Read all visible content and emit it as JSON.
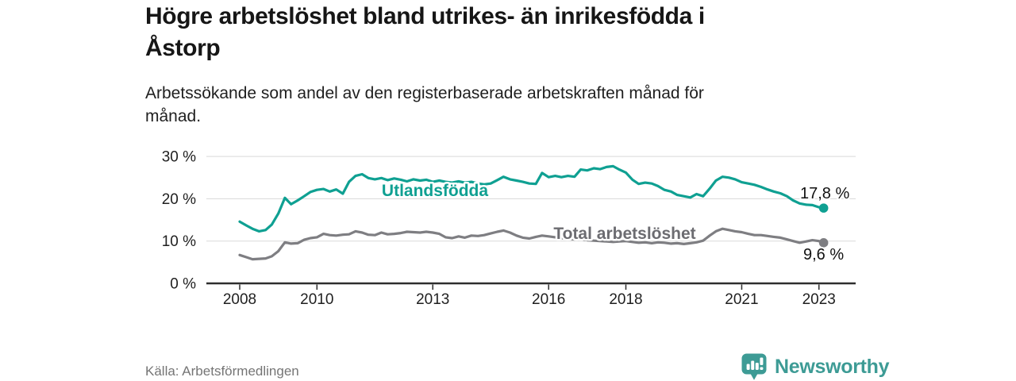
{
  "header": {
    "title_line1": "Högre arbetslöshet bland utrikes- än inrikesfödda i",
    "title_line2": "Åstorp",
    "subtitle_line1": "Arbetssökande som andel av den registerbaserade arbetskraften månad för",
    "subtitle_line2": "månad."
  },
  "footer": {
    "source": "Källa: Arbetsförmedlingen",
    "brand": "Newsworthy"
  },
  "colors": {
    "accent_teal": "#0fa092",
    "logo_teal": "#3d9b95",
    "gray_line": "#7e7e82",
    "gray_label": "#6c6c71",
    "axis": "#2e2e2e",
    "gridline": "#d9d9d9",
    "tick_text": "#1f1f1f",
    "value_text": "#111111"
  },
  "chart_data": {
    "type": "line",
    "title": "Högre arbetslöshet bland utrikes- än inrikesfödda i Åstorp",
    "subtitle": "Arbetssökande som andel av den registerbaserade arbetskraften månad för månad.",
    "unit": "%",
    "grid": true,
    "legend_position": "inline-labels",
    "xlim": [
      2007.85,
      2023.95
    ],
    "ylim": [
      0,
      31
    ],
    "x_ticks": [
      2008,
      2010,
      2013,
      2016,
      2018,
      2021,
      2023
    ],
    "y_ticks": [
      {
        "value": 0,
        "label": "0 %"
      },
      {
        "value": 10,
        "label": "10 %"
      },
      {
        "value": 20,
        "label": "20 %"
      },
      {
        "value": 30,
        "label": "30 %"
      }
    ],
    "x": [
      2008,
      2008.17,
      2008.33,
      2008.5,
      2008.67,
      2008.83,
      2009,
      2009.17,
      2009.33,
      2009.5,
      2009.67,
      2009.83,
      2010,
      2010.17,
      2010.33,
      2010.5,
      2010.67,
      2010.83,
      2011,
      2011.17,
      2011.33,
      2011.5,
      2011.67,
      2011.83,
      2012,
      2012.17,
      2012.33,
      2012.5,
      2012.67,
      2012.83,
      2013,
      2013.17,
      2013.33,
      2013.5,
      2013.67,
      2013.83,
      2014,
      2014.17,
      2014.33,
      2014.5,
      2014.67,
      2014.83,
      2015,
      2015.17,
      2015.33,
      2015.5,
      2015.67,
      2015.83,
      2016,
      2016.17,
      2016.33,
      2016.5,
      2016.67,
      2016.83,
      2017,
      2017.17,
      2017.33,
      2017.5,
      2017.67,
      2017.83,
      2018,
      2018.17,
      2018.33,
      2018.5,
      2018.67,
      2018.83,
      2019,
      2019.17,
      2019.33,
      2019.5,
      2019.67,
      2019.83,
      2020,
      2020.17,
      2020.33,
      2020.5,
      2020.67,
      2020.83,
      2021,
      2021.17,
      2021.33,
      2021.5,
      2021.67,
      2021.83,
      2022,
      2022.17,
      2022.33,
      2022.5,
      2022.67,
      2022.83,
      2023,
      2023.08
    ],
    "series": [
      {
        "name": "Utlandsfödda",
        "color": "#0fa092",
        "label_color": "#0fa092",
        "end_label": "17,8 %",
        "end_value": 17.8,
        "values": [
          14.6,
          13.7,
          12.9,
          12.3,
          12.6,
          13.9,
          16.5,
          20.2,
          18.7,
          19.6,
          20.6,
          21.6,
          22.1,
          22.3,
          21.7,
          22.2,
          21.2,
          24.0,
          25.4,
          25.8,
          24.9,
          24.6,
          24.9,
          24.4,
          24.8,
          24.5,
          24.1,
          24.6,
          24.3,
          24.5,
          24.0,
          24.3,
          24.0,
          23.8,
          24.1,
          23.8,
          24.0,
          23.6,
          23.4,
          23.6,
          24.4,
          25.2,
          24.6,
          24.3,
          24.0,
          23.6,
          23.5,
          26.1,
          25.1,
          25.4,
          25.1,
          25.4,
          25.2,
          26.9,
          26.7,
          27.2,
          27.0,
          27.5,
          27.7,
          26.9,
          26.2,
          24.5,
          23.5,
          23.8,
          23.6,
          23.0,
          22.1,
          21.7,
          20.9,
          20.6,
          20.3,
          21.1,
          20.6,
          22.4,
          24.3,
          25.2,
          25.0,
          24.6,
          23.9,
          23.6,
          23.3,
          22.8,
          22.2,
          21.7,
          21.3,
          20.6,
          19.6,
          18.9,
          18.6,
          18.5,
          18.0,
          17.8
        ]
      },
      {
        "name": "Total arbetslöshet",
        "color": "#7e7e82",
        "label_color": "#6c6c71",
        "end_label": "9,6 %",
        "end_value": 9.6,
        "values": [
          6.7,
          6.2,
          5.7,
          5.8,
          5.9,
          6.4,
          7.6,
          9.7,
          9.4,
          9.5,
          10.3,
          10.7,
          10.9,
          11.7,
          11.4,
          11.3,
          11.5,
          11.6,
          12.3,
          12.0,
          11.5,
          11.4,
          12.0,
          11.6,
          11.7,
          11.9,
          12.2,
          12.1,
          12.0,
          12.2,
          12.0,
          11.7,
          10.9,
          10.7,
          11.1,
          10.8,
          11.3,
          11.2,
          11.4,
          11.8,
          12.2,
          12.5,
          12.0,
          11.3,
          10.8,
          10.6,
          11.0,
          11.3,
          11.1,
          10.9,
          10.7,
          10.6,
          10.4,
          10.5,
          10.2,
          10.1,
          10.0,
          9.9,
          9.8,
          9.9,
          10.0,
          9.8,
          9.6,
          9.7,
          9.5,
          9.7,
          9.6,
          9.4,
          9.5,
          9.3,
          9.5,
          9.7,
          10.1,
          11.3,
          12.3,
          12.9,
          12.6,
          12.3,
          12.1,
          11.7,
          11.4,
          11.4,
          11.2,
          11.0,
          10.8,
          10.4,
          10.0,
          9.6,
          9.9,
          10.2,
          10.0,
          9.6
        ]
      }
    ]
  }
}
